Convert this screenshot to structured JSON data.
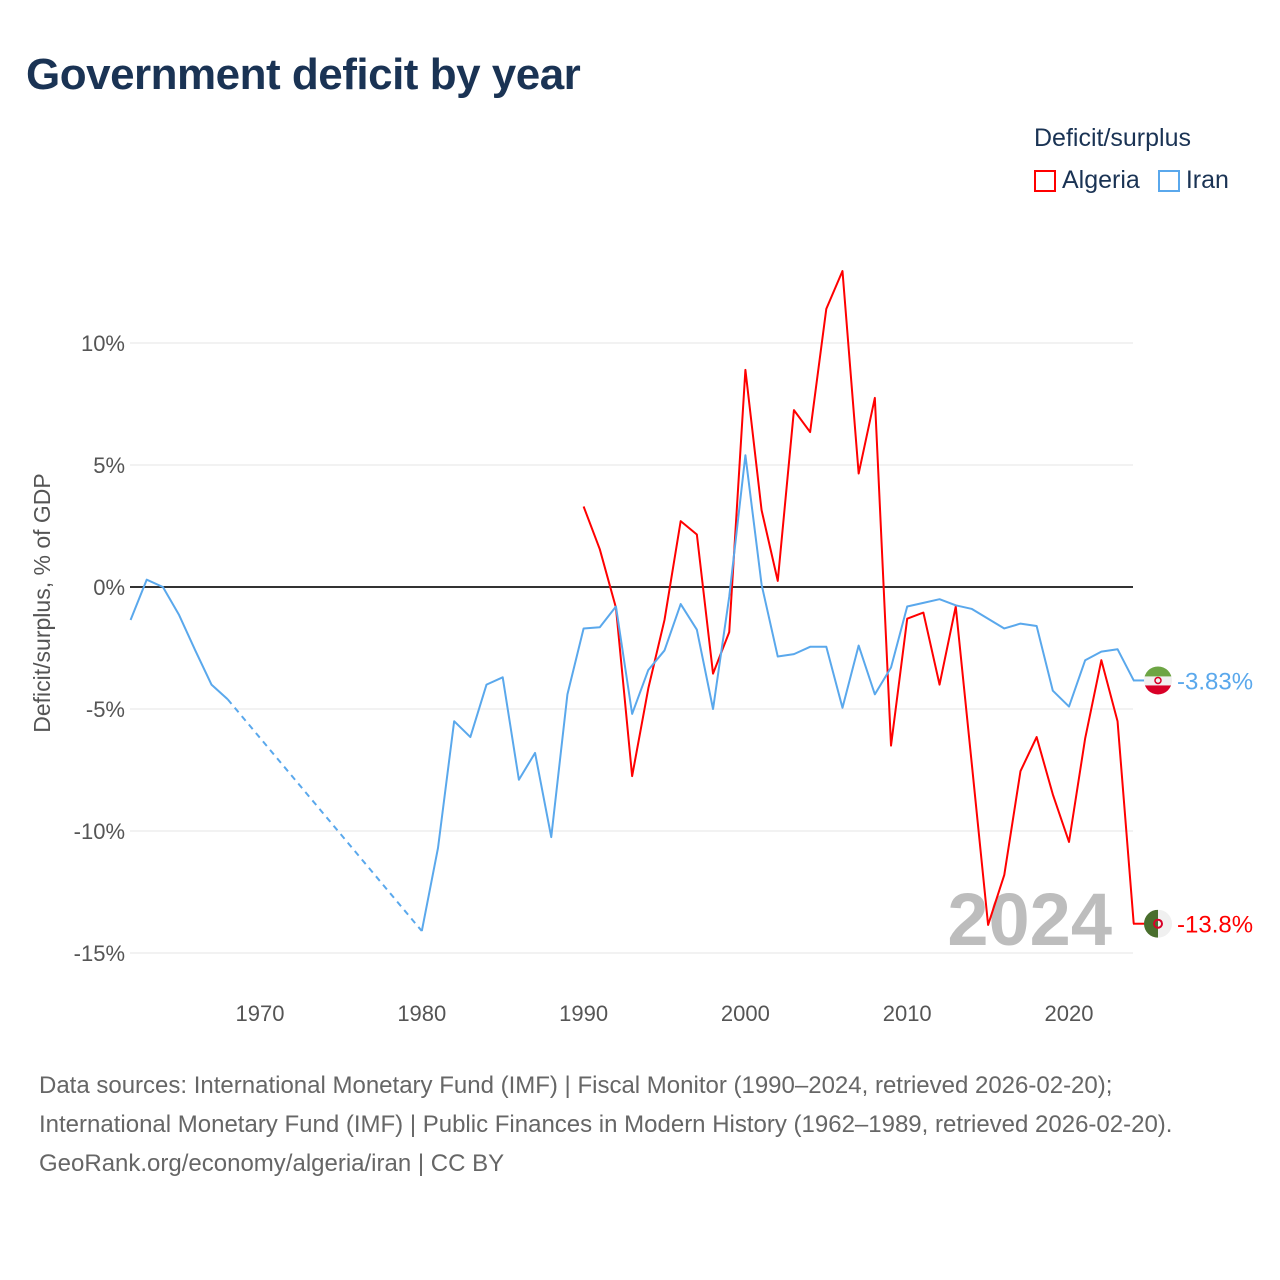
{
  "title": "Government deficit by year",
  "legend": {
    "title": "Deficit/surplus",
    "items": [
      {
        "name": "Algeria",
        "color": "#ff0000"
      },
      {
        "name": "Iran",
        "color": "#5aa8ec"
      }
    ]
  },
  "year_watermark": "2024",
  "footer": {
    "sources": "Data sources: International Monetary Fund (IMF) | Fiscal Monitor (1990–2024, retrieved 2026-02-20); International Monetary Fund (IMF) | Public Finances in Modern History (1962–1989, retrieved 2026-02-20).",
    "credit": "GeoRank.org/economy/algeria/iran | CC BY"
  },
  "chart_data": {
    "type": "line",
    "title": "Government deficit by year",
    "xlabel": "",
    "ylabel": "Deficit/surplus, % of GDP",
    "xlim": [
      1962,
      2024
    ],
    "ylim": [
      -17,
      14
    ],
    "x_ticks": [
      1970,
      1980,
      1990,
      2000,
      2010,
      2020
    ],
    "y_ticks": [
      {
        "v": 10,
        "label": "10%"
      },
      {
        "v": 5,
        "label": "5%"
      },
      {
        "v": 0,
        "label": "0%"
      },
      {
        "v": -5,
        "label": "-5%"
      },
      {
        "v": -10,
        "label": "-10%"
      },
      {
        "v": -15,
        "label": "-15%"
      }
    ],
    "grid": true,
    "legend_position": "top-right",
    "series": [
      {
        "name": "Algeria",
        "color": "#ff0000",
        "end_label": "-13.8%",
        "x": [
          1990,
          1991,
          1992,
          1993,
          1994,
          1995,
          1996,
          1997,
          1998,
          1999,
          2000,
          2001,
          2002,
          2003,
          2004,
          2005,
          2006,
          2007,
          2008,
          2009,
          2010,
          2011,
          2012,
          2013,
          2014,
          2015,
          2016,
          2017,
          2018,
          2019,
          2020,
          2021,
          2022,
          2023,
          2024
        ],
        "y": [
          3.3,
          1.55,
          -0.85,
          -7.75,
          -4.15,
          -1.35,
          2.7,
          2.15,
          -3.55,
          -1.85,
          8.9,
          3.15,
          0.25,
          7.25,
          6.35,
          11.4,
          12.95,
          4.65,
          7.75,
          -6.5,
          -1.3,
          -1.05,
          -4.0,
          -0.8,
          -7.3,
          -13.85,
          -11.8,
          -7.55,
          -6.15,
          -8.5,
          -10.45,
          -6.2,
          -3.0,
          -5.5,
          -13.8
        ]
      },
      {
        "name": "Iran",
        "color": "#5aa8ec",
        "end_label": "-3.83%",
        "gap_after": 1968,
        "x": [
          1962,
          1963,
          1964,
          1965,
          1966,
          1967,
          1968,
          1980,
          1981,
          1982,
          1983,
          1984,
          1985,
          1986,
          1987,
          1988,
          1989,
          1990,
          1991,
          1992,
          1993,
          1994,
          1995,
          1996,
          1997,
          1998,
          1999,
          2000,
          2001,
          2002,
          2003,
          2004,
          2005,
          2006,
          2007,
          2008,
          2009,
          2010,
          2011,
          2012,
          2013,
          2014,
          2015,
          2016,
          2017,
          2018,
          2019,
          2020,
          2021,
          2022,
          2023,
          2024
        ],
        "y": [
          -1.35,
          0.3,
          0,
          -1.15,
          -2.6,
          -4.0,
          -4.6,
          -14.1,
          -10.7,
          -5.5,
          -6.15,
          -4.0,
          -3.7,
          -7.9,
          -6.8,
          -10.25,
          -4.4,
          -1.7,
          -1.65,
          -0.8,
          -5.2,
          -3.4,
          -2.6,
          -0.7,
          -1.75,
          -5.0,
          -0.4,
          5.4,
          0.1,
          -2.85,
          -2.75,
          -2.45,
          -2.45,
          -4.95,
          -2.4,
          -4.4,
          -3.3,
          -0.8,
          -0.65,
          -0.5,
          -0.75,
          -0.9,
          -1.3,
          -1.7,
          -1.5,
          -1.6,
          -4.25,
          -4.9,
          -3.0,
          -2.65,
          -2.55,
          -3.83
        ]
      }
    ]
  }
}
